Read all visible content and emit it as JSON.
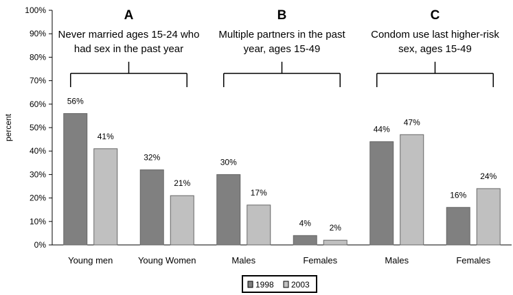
{
  "chart_data": {
    "type": "bar",
    "ylabel": "percent",
    "ylim": [
      0,
      100
    ],
    "yticks": [
      "0%",
      "10%",
      "20%",
      "30%",
      "40%",
      "50%",
      "60%",
      "70%",
      "80%",
      "90%",
      "100%"
    ],
    "categories": [
      "Young men",
      "Young Women",
      "Males",
      "Females",
      "Males",
      "Females"
    ],
    "series": [
      {
        "name": "1998",
        "values": [
          56,
          32,
          30,
          4,
          44,
          16
        ],
        "labels": [
          "56%",
          "32%",
          "30%",
          "4%",
          "44%",
          "16%"
        ],
        "color": "#808080"
      },
      {
        "name": "2003",
        "values": [
          41,
          21,
          17,
          2,
          47,
          24
        ],
        "labels": [
          "41%",
          "21%",
          "17%",
          "2%",
          "47%",
          "24%"
        ],
        "color": "#c0c0c0"
      }
    ],
    "groups": [
      {
        "letter": "A",
        "title_lines": [
          "Never married ages 15-24 who",
          "had sex in the past year"
        ]
      },
      {
        "letter": "B",
        "title_lines": [
          "Multiple partners in the past",
          "year, ages 15-49"
        ]
      },
      {
        "letter": "C",
        "title_lines": [
          "Condom use last higher-risk",
          "sex, ages 15-49"
        ]
      }
    ],
    "legend": {
      "position": "bottom-center"
    },
    "grid": false
  }
}
